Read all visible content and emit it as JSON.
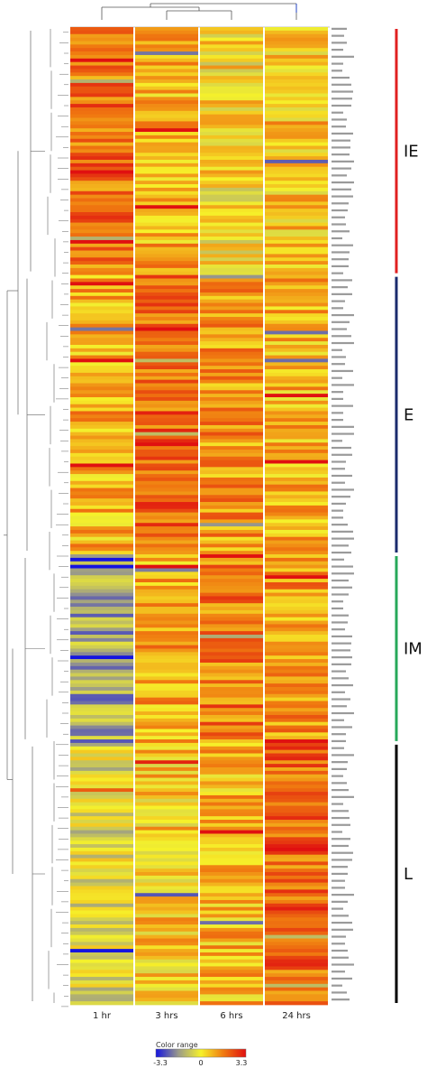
{
  "chart_data": {
    "type": "heatmap",
    "columns": [
      "1 hr",
      "3 hrs",
      "6 hrs",
      "24 hrs"
    ],
    "n_rows": 280,
    "clusters": [
      {
        "label": "IE",
        "color": "#e02020",
        "row_start": 0,
        "row_end": 71
      },
      {
        "label": "E",
        "color": "#1a2b6d",
        "row_start": 71,
        "row_end": 151
      },
      {
        "label": "IM",
        "color": "#27a85a",
        "row_start": 151,
        "row_end": 205
      },
      {
        "label": "L",
        "color": "#000000",
        "row_start": 205,
        "row_end": 280
      }
    ],
    "color_scale": {
      "title": "Color range",
      "min": -3.3,
      "mid": 0,
      "max": 3.3,
      "tick_labels": [
        "-3.3",
        "0",
        "3.3"
      ],
      "colors": [
        "#1414e0",
        "#9a9a8a",
        "#f6f22a",
        "#f07a10",
        "#e01010"
      ]
    }
  }
}
